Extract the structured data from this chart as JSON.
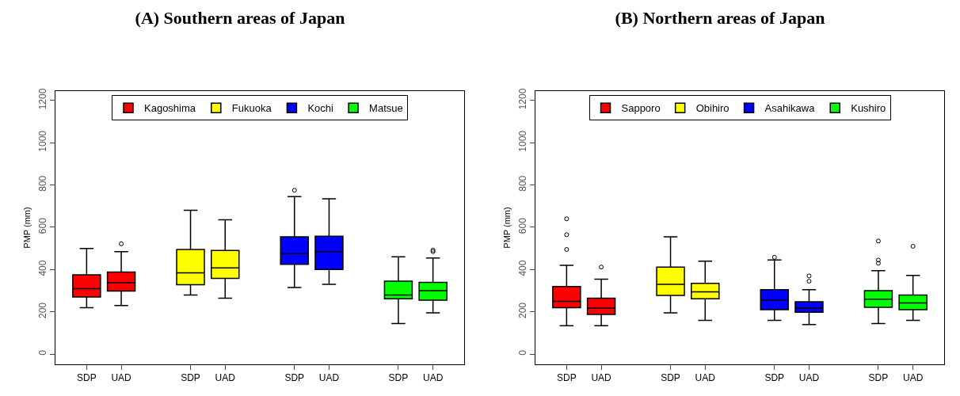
{
  "chart_data": [
    {
      "type": "box",
      "title": "(A) Southern areas of Japan",
      "ylabel": "PMP (mm)",
      "categories": [
        "SDP",
        "UAD",
        "SDP",
        "UAD",
        "SDP",
        "UAD",
        "SDP",
        "UAD"
      ],
      "ylim": [
        -48,
        1244
      ],
      "yticks": [
        0,
        200,
        400,
        600,
        800,
        1000,
        1200
      ],
      "grid": false,
      "legend": "top",
      "series": [
        {
          "name": "Kagoshima",
          "color": "#ff0000",
          "boxes": [
            {
              "low": 220,
              "q1": 270,
              "median": 310,
              "q3": 375,
              "high": 500
            },
            {
              "low": 230,
              "q1": 298,
              "median": 338,
              "q3": 388,
              "high": 485,
              "outliers": [
                522
              ]
            },
            null,
            null,
            null,
            null,
            null,
            null
          ]
        },
        {
          "name": "Fukuoka",
          "color": "#ffff00",
          "boxes": [
            null,
            null,
            {
              "low": 280,
              "q1": 328,
              "median": 385,
              "q3": 495,
              "high": 680
            },
            {
              "low": 265,
              "q1": 358,
              "median": 408,
              "q3": 490,
              "high": 635
            },
            null,
            null,
            null,
            null
          ]
        },
        {
          "name": "Kochi",
          "color": "#0000ff",
          "boxes": [
            null,
            null,
            null,
            null,
            {
              "low": 315,
              "q1": 425,
              "median": 475,
              "q3": 555,
              "high": 745,
              "outliers": [
                775
              ]
            },
            {
              "low": 330,
              "q1": 400,
              "median": 485,
              "q3": 558,
              "high": 735
            },
            null,
            null
          ]
        },
        {
          "name": "Matsue",
          "color": "#00ff00",
          "boxes": [
            null,
            null,
            null,
            null,
            null,
            null,
            {
              "low": 145,
              "q1": 262,
              "median": 280,
              "q3": 345,
              "high": 460
            },
            {
              "low": 195,
              "q1": 255,
              "median": 300,
              "q3": 340,
              "high": 455,
              "outliers": [
                485,
                492
              ]
            }
          ]
        }
      ]
    },
    {
      "type": "box",
      "title": "(B) Northern areas of Japan",
      "ylabel": "PMP (mm)",
      "categories": [
        "SDP",
        "UAD",
        "SDP",
        "UAD",
        "SDP",
        "UAD",
        "SDP",
        "UAD"
      ],
      "ylim": [
        -48,
        1244
      ],
      "yticks": [
        0,
        200,
        400,
        600,
        800,
        1000,
        1200
      ],
      "grid": false,
      "legend": "top",
      "series": [
        {
          "name": "Sapporo",
          "color": "#ff0000",
          "boxes": [
            {
              "low": 135,
              "q1": 220,
              "median": 250,
              "q3": 320,
              "high": 420,
              "outliers": [
                495,
                565,
                640
              ]
            },
            {
              "low": 135,
              "q1": 188,
              "median": 218,
              "q3": 265,
              "high": 355,
              "outliers": [
                412
              ]
            },
            null,
            null,
            null,
            null,
            null,
            null
          ]
        },
        {
          "name": "Obihiro",
          "color": "#ffff00",
          "boxes": [
            null,
            null,
            {
              "low": 195,
              "q1": 278,
              "median": 330,
              "q3": 412,
              "high": 555
            },
            {
              "low": 160,
              "q1": 262,
              "median": 295,
              "q3": 335,
              "high": 440
            },
            null,
            null,
            null,
            null
          ]
        },
        {
          "name": "Asahikawa",
          "color": "#0000ff",
          "boxes": [
            null,
            null,
            null,
            null,
            {
              "low": 160,
              "q1": 210,
              "median": 255,
              "q3": 305,
              "high": 445,
              "outliers": [
                458
              ]
            },
            {
              "low": 140,
              "q1": 198,
              "median": 218,
              "q3": 248,
              "high": 305,
              "outliers": [
                345,
                370
              ]
            },
            null,
            null
          ]
        },
        {
          "name": "Kushiro",
          "color": "#00ff00",
          "boxes": [
            null,
            null,
            null,
            null,
            null,
            null,
            {
              "low": 145,
              "q1": 222,
              "median": 260,
              "q3": 300,
              "high": 395,
              "outliers": [
                430,
                445,
                535
              ]
            },
            {
              "low": 160,
              "q1": 210,
              "median": 242,
              "q3": 280,
              "high": 372,
              "outliers": [
                510
              ]
            }
          ]
        }
      ]
    }
  ]
}
